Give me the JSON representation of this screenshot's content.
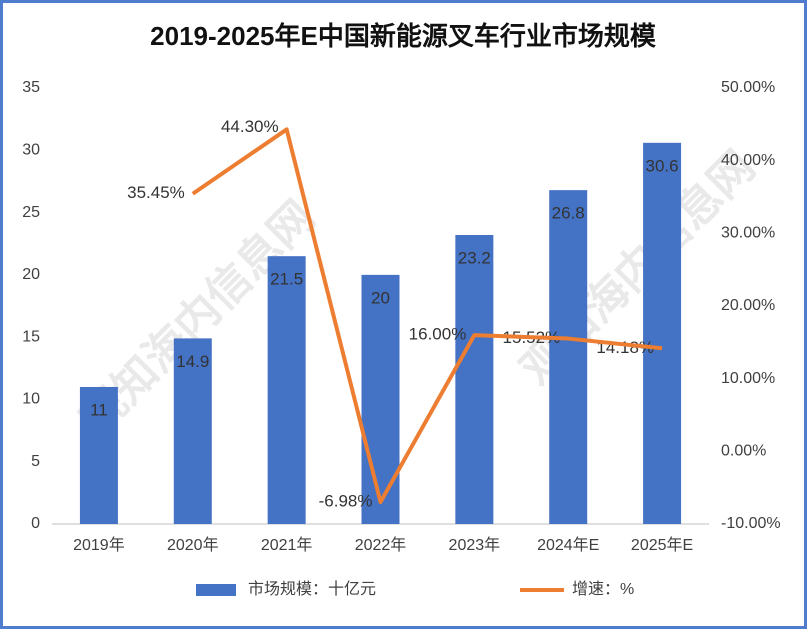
{
  "chart_data": {
    "type": "bar",
    "title": "2019-2025年E中国新能源叉车行业市场规模",
    "watermark": "观知海内信息网",
    "categories": [
      "2019年",
      "2020年",
      "2021年",
      "2022年",
      "2023年",
      "2024年E",
      "2025年E"
    ],
    "series": [
      {
        "name": "市场规模：十亿元",
        "type": "bar",
        "color": "#4472c4",
        "values": [
          11,
          14.9,
          21.5,
          20,
          23.2,
          26.8,
          30.6
        ]
      },
      {
        "name": "增速：%",
        "type": "line",
        "axis": "y2",
        "color": "#ed7d31",
        "values": [
          null,
          35.45,
          44.3,
          -6.98,
          16.0,
          15.52,
          14.18
        ],
        "value_labels": [
          null,
          "35.45%",
          "44.30%",
          "-6.98%",
          "16.00%",
          "15.52%",
          "14.18%"
        ]
      }
    ],
    "ylim": [
      0,
      35
    ],
    "yticks": [
      0,
      5,
      10,
      15,
      20,
      25,
      30,
      35
    ],
    "y2lim": [
      -10,
      50
    ],
    "y2ticks": [
      {
        "value": -10,
        "label": "-10.00%"
      },
      {
        "value": 0,
        "label": "0.00%"
      },
      {
        "value": 10,
        "label": "10.00%"
      },
      {
        "value": 20,
        "label": "20.00%"
      },
      {
        "value": 30,
        "label": "30.00%"
      },
      {
        "value": 40,
        "label": "40.00%"
      },
      {
        "value": 50,
        "label": "50.00%"
      }
    ],
    "legend": "bottom"
  }
}
